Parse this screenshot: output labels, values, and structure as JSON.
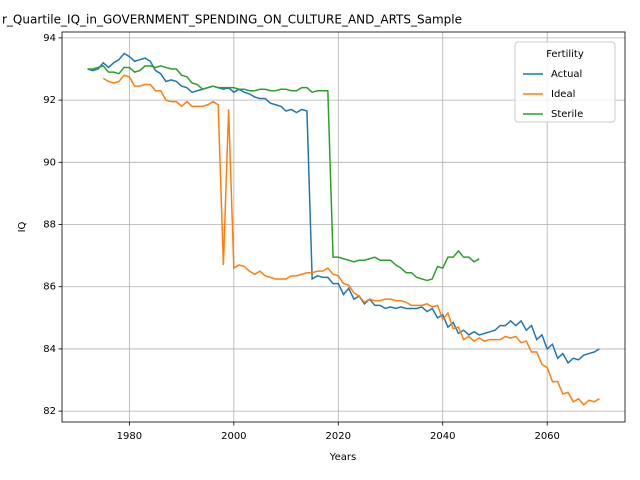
{
  "chart_data": {
    "type": "line",
    "title": "r_Quartile_IQ_in_GOVERNMENT_SPENDING_ON_CULTURE_AND_ARTS_Sample",
    "xlabel": "Years",
    "ylabel": "IQ",
    "legend_title": "Fertility",
    "legend": "upper right",
    "grid": true,
    "xlim": [
      1967.1,
      2074.9
    ],
    "xticks": [
      1980,
      2000,
      2020,
      2040,
      2060
    ],
    "ylim": [
      81.65,
      94.19
    ],
    "yticks": [
      82,
      84,
      86,
      88,
      90,
      92,
      94
    ],
    "x": [
      1972,
      1973,
      1974,
      1975,
      1976,
      1977,
      1978,
      1979,
      1980,
      1981,
      1982,
      1983,
      1984,
      1985,
      1986,
      1987,
      1988,
      1989,
      1990,
      1991,
      1992,
      1993,
      1994,
      1995,
      1996,
      1997,
      1998,
      1999,
      2000,
      2001,
      2002,
      2003,
      2004,
      2005,
      2006,
      2007,
      2008,
      2009,
      2010,
      2011,
      2012,
      2013,
      2014,
      2015,
      2016,
      2017,
      2018,
      2019,
      2020,
      2021,
      2022,
      2023,
      2024,
      2025,
      2026,
      2027,
      2028,
      2029,
      2030,
      2031,
      2032,
      2033,
      2034,
      2035,
      2036,
      2037,
      2038,
      2039,
      2040,
      2041,
      2042,
      2043,
      2044,
      2045,
      2046,
      2047,
      2048,
      2049,
      2050,
      2051,
      2052,
      2053,
      2054,
      2055,
      2056,
      2057,
      2058,
      2059,
      2060,
      2061,
      2062,
      2063,
      2064,
      2065,
      2066,
      2067,
      2068,
      2069,
      2070
    ],
    "series": [
      {
        "name": "Actual",
        "color": "#1f77b4",
        "values": [
          93.0,
          92.95,
          93.0,
          93.2,
          93.05,
          93.2,
          93.3,
          93.5,
          93.4,
          93.25,
          93.3,
          93.35,
          93.25,
          92.95,
          92.85,
          92.6,
          92.65,
          92.6,
          92.45,
          92.4,
          92.25,
          92.3,
          92.35,
          92.4,
          92.45,
          92.4,
          92.35,
          92.4,
          92.25,
          92.35,
          92.25,
          92.2,
          92.1,
          92.05,
          92.05,
          91.9,
          91.85,
          91.8,
          91.65,
          91.7,
          91.6,
          91.7,
          91.65,
          86.25,
          86.35,
          86.3,
          86.3,
          86.1,
          86.1,
          85.75,
          85.95,
          85.6,
          85.7,
          85.45,
          85.6,
          85.4,
          85.4,
          85.3,
          85.35,
          85.3,
          85.35,
          85.3,
          85.3,
          85.3,
          85.35,
          85.2,
          85.3,
          85.0,
          85.1,
          84.7,
          84.85,
          84.5,
          84.6,
          84.45,
          84.55,
          84.45,
          84.5,
          84.55,
          84.6,
          84.75,
          84.75,
          84.9,
          84.75,
          84.9,
          84.6,
          84.75,
          84.3,
          84.45,
          84.0,
          84.15,
          83.7,
          83.85,
          83.55,
          83.7,
          83.65,
          83.8,
          83.85,
          83.9,
          84.0
        ]
      },
      {
        "name": "Ideal",
        "color": "#ff7f0e",
        "values": [
          null,
          null,
          null,
          92.7,
          92.6,
          92.55,
          92.6,
          92.8,
          92.75,
          92.45,
          92.45,
          92.5,
          92.5,
          92.3,
          92.3,
          92.0,
          91.95,
          91.95,
          91.8,
          91.95,
          91.8,
          91.8,
          91.8,
          91.85,
          91.95,
          91.85,
          86.7,
          91.7,
          86.6,
          86.7,
          86.65,
          86.5,
          86.4,
          86.5,
          86.35,
          86.3,
          86.25,
          86.25,
          86.25,
          86.35,
          86.35,
          86.4,
          86.45,
          86.45,
          86.5,
          86.5,
          86.6,
          86.4,
          86.35,
          86.1,
          86.05,
          85.8,
          85.7,
          85.5,
          85.6,
          85.55,
          85.55,
          85.6,
          85.6,
          85.55,
          85.55,
          85.5,
          85.4,
          85.4,
          85.4,
          85.45,
          85.35,
          85.4,
          84.95,
          85.15,
          84.65,
          84.7,
          84.3,
          84.4,
          84.25,
          84.35,
          84.25,
          84.3,
          84.3,
          84.3,
          84.4,
          84.35,
          84.4,
          84.2,
          84.25,
          83.9,
          83.9,
          83.5,
          83.4,
          82.95,
          82.95,
          82.55,
          82.6,
          82.3,
          82.4,
          82.2,
          82.35,
          82.3,
          82.4
        ]
      },
      {
        "name": "Sterile",
        "color": "#2ca02c",
        "values": [
          93.0,
          93.0,
          93.05,
          93.1,
          92.9,
          92.9,
          92.85,
          93.05,
          93.05,
          92.9,
          92.95,
          93.1,
          93.1,
          93.05,
          93.1,
          93.05,
          93.0,
          93.0,
          92.8,
          92.75,
          92.55,
          92.5,
          92.35,
          92.4,
          92.45,
          92.4,
          92.4,
          92.4,
          92.4,
          92.35,
          92.35,
          92.3,
          92.3,
          92.35,
          92.35,
          92.3,
          92.3,
          92.35,
          92.35,
          92.3,
          92.3,
          92.4,
          92.4,
          92.25,
          92.3,
          92.3,
          92.3,
          86.95,
          86.95,
          86.9,
          86.85,
          86.8,
          86.85,
          86.85,
          86.9,
          86.95,
          86.85,
          86.85,
          86.85,
          86.7,
          86.6,
          86.45,
          86.45,
          86.3,
          86.25,
          86.2,
          86.25,
          86.65,
          86.6,
          86.95,
          86.95,
          87.15,
          86.95,
          86.95,
          86.8,
          86.9,
          null,
          null,
          null,
          null,
          null,
          null,
          null,
          null,
          null,
          null,
          null,
          null,
          null,
          null,
          null,
          null,
          null,
          null,
          null,
          null,
          null,
          null,
          null
        ]
      }
    ]
  }
}
